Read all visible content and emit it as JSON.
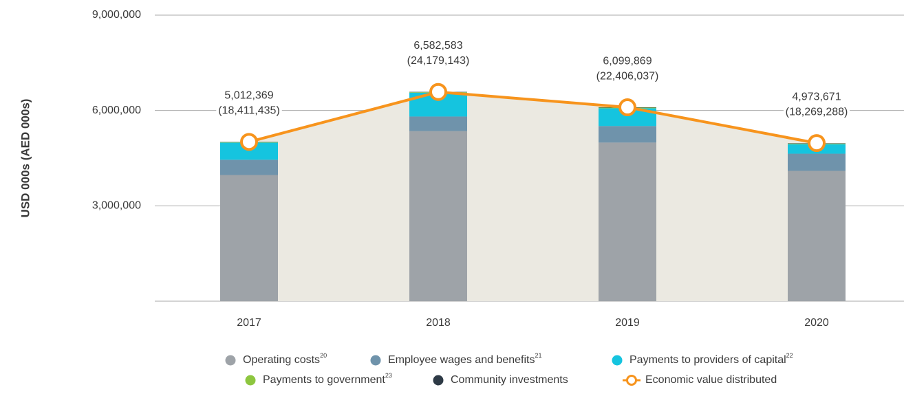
{
  "chart_data": {
    "type": "bar",
    "stacked": true,
    "y_label": "USD 000s (AED 000s)",
    "categories": [
      "2017",
      "2018",
      "2019",
      "2020"
    ],
    "ylim": [
      0,
      9000000
    ],
    "yticks": [
      {
        "value": 3000000,
        "label": "3,000,000"
      },
      {
        "value": 6000000,
        "label": "6,000,000"
      },
      {
        "value": 9000000,
        "label": "9,000,000"
      }
    ],
    "grid": true,
    "series": [
      {
        "name": "Operating costs",
        "footnote": "20",
        "color": "#9ea3a8",
        "values": [
          3970000,
          5350000,
          4990000,
          4100000
        ]
      },
      {
        "name": "Employee wages and benefits",
        "footnote": "21",
        "color": "#6f93ab",
        "values": [
          480000,
          460000,
          520000,
          540000
        ]
      },
      {
        "name": "Payments to providers of capital",
        "footnote": "22",
        "color": "#15c4df",
        "values": [
          540000,
          750000,
          560000,
          300000
        ]
      },
      {
        "name": "Payments to government",
        "footnote": "23",
        "color": "#8dc63f",
        "values": [
          15000,
          15000,
          20000,
          20000
        ]
      },
      {
        "name": "Community investments",
        "color": "#2e3a46",
        "values": [
          8000,
          10000,
          10000,
          10000
        ]
      },
      {
        "name": "Economic value distributed",
        "type": "line",
        "color": "#f7941d",
        "values": [
          5012369,
          6582583,
          6099869,
          4973671
        ],
        "value_labels": [
          "5,012,369",
          "6,582,583",
          "6,099,869",
          "4,973,671"
        ],
        "aed_values": [
          18411435,
          24179143,
          22406037,
          18269288
        ],
        "aed_value_labels": [
          "(18,411,435)",
          "(24,179,143)",
          "(22,406,037)",
          "(18,269,288)"
        ]
      }
    ]
  }
}
